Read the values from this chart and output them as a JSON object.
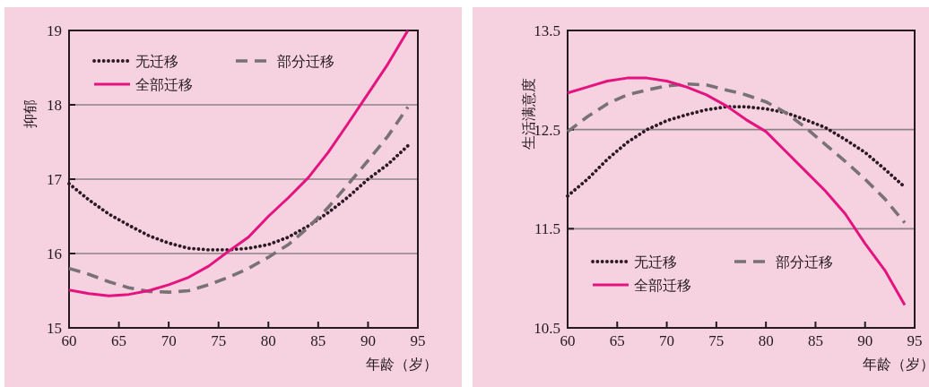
{
  "chart_data": [
    {
      "type": "line",
      "ylabel": "抑郁",
      "xlabel": "年龄（岁）",
      "x": [
        60,
        62,
        64,
        66,
        68,
        70,
        72,
        74,
        76,
        78,
        80,
        82,
        84,
        86,
        88,
        90,
        92,
        94
      ],
      "xlim": [
        60,
        95
      ],
      "ylim": [
        15,
        19
      ],
      "xticks": [
        60,
        65,
        70,
        75,
        80,
        85,
        90,
        95
      ],
      "yticks": [
        15,
        16,
        17,
        18,
        19
      ],
      "grid": "y",
      "legend": "top left",
      "series": [
        {
          "name": "无迁移",
          "color": "#2b1a24",
          "line_style": "dotted",
          "values": [
            16.94,
            16.72,
            16.53,
            16.38,
            16.24,
            16.14,
            16.07,
            16.05,
            16.05,
            16.07,
            16.12,
            16.22,
            16.37,
            16.55,
            16.76,
            17.0,
            17.2,
            17.45
          ]
        },
        {
          "name": "部分迁移",
          "color": "#787276",
          "line_style": "dashed",
          "values": [
            15.8,
            15.72,
            15.62,
            15.54,
            15.49,
            15.48,
            15.5,
            15.58,
            15.68,
            15.8,
            15.95,
            16.12,
            16.35,
            16.62,
            16.93,
            17.25,
            17.58,
            17.97
          ]
        },
        {
          "name": "全部迁移",
          "color": "#e4137f",
          "line_style": "solid",
          "values": [
            15.51,
            15.46,
            15.43,
            15.45,
            15.5,
            15.58,
            15.68,
            15.83,
            16.03,
            16.22,
            16.5,
            16.75,
            17.02,
            17.36,
            17.75,
            18.15,
            18.55,
            19.0
          ]
        }
      ]
    },
    {
      "type": "line",
      "ylabel": "生活满意度",
      "xlabel": "年龄（岁）",
      "x": [
        60,
        62,
        64,
        66,
        68,
        70,
        72,
        74,
        76,
        78,
        80,
        82,
        84,
        86,
        88,
        90,
        92,
        94
      ],
      "xlim": [
        60,
        95
      ],
      "ylim": [
        10.5,
        13.5
      ],
      "xticks": [
        60,
        65,
        70,
        75,
        80,
        85,
        90,
        95
      ],
      "yticks": [
        10.5,
        11.5,
        12.5,
        13.5
      ],
      "grid": "y",
      "legend": "bottom left",
      "series": [
        {
          "name": "无迁移",
          "color": "#2b1a24",
          "line_style": "dotted",
          "values": [
            11.83,
            12.0,
            12.2,
            12.37,
            12.5,
            12.59,
            12.65,
            12.7,
            12.73,
            12.73,
            12.71,
            12.67,
            12.6,
            12.52,
            12.4,
            12.27,
            12.1,
            11.92
          ]
        },
        {
          "name": "部分迁移",
          "color": "#787276",
          "line_style": "dashed",
          "values": [
            12.48,
            12.63,
            12.76,
            12.85,
            12.9,
            12.94,
            12.96,
            12.95,
            12.9,
            12.85,
            12.78,
            12.67,
            12.52,
            12.35,
            12.18,
            12.0,
            11.8,
            11.56
          ]
        },
        {
          "name": "全部迁移",
          "color": "#e4137f",
          "line_style": "solid",
          "values": [
            12.87,
            12.93,
            12.99,
            13.02,
            13.02,
            12.99,
            12.93,
            12.85,
            12.74,
            12.6,
            12.48,
            12.28,
            12.08,
            11.88,
            11.65,
            11.35,
            11.08,
            10.73
          ]
        }
      ]
    }
  ]
}
